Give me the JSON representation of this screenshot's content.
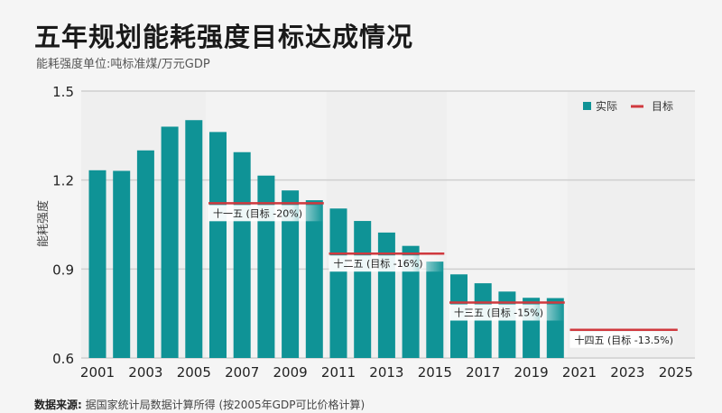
{
  "title": "五年规划能耗强度目标达成情况",
  "subtitle": "能耗强度单位:吨标准煤/万元GDP",
  "source": {
    "label": "数据来源:",
    "text": " 据国家统计局数据计算所得 (按2005年GDP可比价格计算)"
  },
  "colors": {
    "bar": "#0f9396",
    "target": "#d0393e",
    "grid": "#cfcfcf",
    "plot_bg_a": "#efefef",
    "plot_bg_b": "#f3f3f3"
  },
  "chart_data": {
    "type": "bar",
    "title": "五年规划能耗强度目标达成情况",
    "subtitle": "能耗强度单位:吨标准煤/万元GDP",
    "xlabel": "",
    "ylabel": "能耗强度",
    "ylim": [
      0.6,
      1.5
    ],
    "xlim": [
      2000.5,
      2025.5
    ],
    "yticks": [
      0.6,
      0.9,
      1.2,
      1.5
    ],
    "ytick_labels": [
      "0.6",
      "0.9",
      "1.2",
      "1.5"
    ],
    "xticks": [
      2001,
      2003,
      2005,
      2007,
      2009,
      2011,
      2013,
      2015,
      2017,
      2019,
      2021,
      2023,
      2025
    ],
    "xtick_labels": [
      "2001",
      "2003",
      "2005",
      "2007",
      "2009",
      "2011",
      "2013",
      "2015",
      "2017",
      "2019",
      "2021",
      "2023",
      "2025"
    ],
    "grid": true,
    "legend": {
      "position": "top-right",
      "entries": [
        {
          "label": "实际",
          "kind": "bar"
        },
        {
          "label": "目标",
          "kind": "line"
        }
      ]
    },
    "series": [
      {
        "name": "实际",
        "kind": "bar",
        "x": [
          2001,
          2002,
          2003,
          2004,
          2005,
          2006,
          2007,
          2008,
          2009,
          2010,
          2011,
          2012,
          2013,
          2014,
          2015,
          2016,
          2017,
          2018,
          2019,
          2020
        ],
        "values": [
          1.233,
          1.231,
          1.3,
          1.38,
          1.402,
          1.362,
          1.294,
          1.215,
          1.165,
          1.132,
          1.104,
          1.062,
          1.023,
          0.978,
          0.925,
          0.882,
          0.852,
          0.824,
          0.803,
          0.802
        ]
      },
      {
        "name": "目标",
        "kind": "segment",
        "segments": [
          {
            "label": "十一五 (目标 -20%)",
            "x_start": 2006,
            "x_end": 2010,
            "value": 1.122
          },
          {
            "label": "十二五 (目标 -16%)",
            "x_start": 2011,
            "x_end": 2015,
            "value": 0.952
          },
          {
            "label": "十三五 (目标 -15%)",
            "x_start": 2016,
            "x_end": 2020,
            "value": 0.787
          },
          {
            "label": "十四五 (目标 -13.5%)",
            "x_start": 2021,
            "x_end": 2025,
            "value": 0.695
          }
        ]
      }
    ],
    "shaded_periods": [
      {
        "x_start": 2001,
        "x_end": 2005
      },
      {
        "x_start": 2006,
        "x_end": 2010
      },
      {
        "x_start": 2011,
        "x_end": 2015
      },
      {
        "x_start": 2016,
        "x_end": 2020
      },
      {
        "x_start": 2021,
        "x_end": 2025
      }
    ]
  }
}
